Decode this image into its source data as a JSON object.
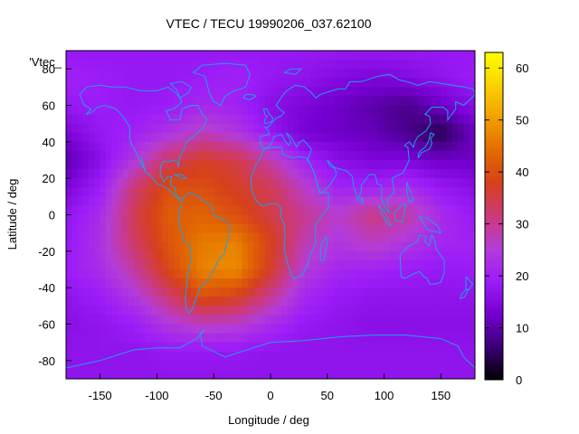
{
  "chart_data": {
    "type": "heatmap",
    "title": "VTEC / TECU 19990206_037.62100",
    "xlabel": "Longitude / deg",
    "ylabel": "Latitude / deg",
    "key_label": "'Vtec_",
    "xlim": [
      -180,
      180
    ],
    "ylim": [
      -90,
      90
    ],
    "zlim": [
      0,
      63
    ],
    "xticks": [
      -150,
      -100,
      -50,
      0,
      50,
      100,
      150
    ],
    "yticks": [
      -80,
      -60,
      -40,
      -20,
      0,
      20,
      40,
      60,
      80
    ],
    "colorbar_ticks": [
      0,
      10,
      20,
      30,
      40,
      50,
      60
    ],
    "palette": [
      "#000000",
      "#3a0073",
      "#7400d0",
      "#9c1cf8",
      "#b43cd8",
      "#cc3a7a",
      "#d6401c",
      "#e36a00",
      "#f0a000",
      "#fad200",
      "#ffff00"
    ],
    "coastline_color": "#1ea0e6",
    "grid": false,
    "lon": [
      -180,
      -150,
      -120,
      -90,
      -60,
      -30,
      0,
      30,
      60,
      90,
      120,
      150,
      180
    ],
    "lat": [
      90,
      75,
      60,
      45,
      30,
      15,
      0,
      -15,
      -30,
      -45,
      -60,
      -75,
      -90
    ],
    "vtec": [
      [
        18,
        18,
        18,
        18,
        18,
        18,
        18,
        18,
        18,
        18,
        18,
        18,
        18
      ],
      [
        20,
        19,
        18,
        18,
        19,
        20,
        18,
        17,
        15,
        14,
        15,
        17,
        19
      ],
      [
        18,
        19,
        18,
        19,
        21,
        20,
        16,
        14,
        12,
        10,
        8,
        12,
        16
      ],
      [
        14,
        18,
        20,
        23,
        27,
        24,
        18,
        13,
        12,
        11,
        8,
        4,
        12
      ],
      [
        10,
        16,
        24,
        33,
        37,
        35,
        28,
        20,
        16,
        14,
        14,
        12,
        12
      ],
      [
        14,
        19,
        32,
        40,
        40,
        37,
        34,
        26,
        20,
        20,
        22,
        18,
        16
      ],
      [
        17,
        22,
        34,
        42,
        43,
        40,
        35,
        30,
        26,
        31,
        29,
        22,
        18
      ],
      [
        18,
        23,
        33,
        41,
        46,
        47,
        38,
        28,
        24,
        27,
        24,
        21,
        20
      ],
      [
        19,
        22,
        29,
        39,
        47,
        48,
        37,
        25,
        21,
        20,
        19,
        18,
        19
      ],
      [
        17,
        19,
        24,
        32,
        40,
        38,
        30,
        21,
        18,
        17,
        17,
        17,
        17
      ],
      [
        16,
        17,
        19,
        24,
        27,
        26,
        22,
        18,
        17,
        16,
        16,
        16,
        16
      ],
      [
        17,
        17,
        17,
        18,
        18,
        18,
        17,
        17,
        17,
        17,
        17,
        17,
        17
      ],
      [
        17,
        17,
        17,
        17,
        17,
        17,
        17,
        17,
        17,
        17,
        17,
        17,
        17
      ]
    ]
  }
}
